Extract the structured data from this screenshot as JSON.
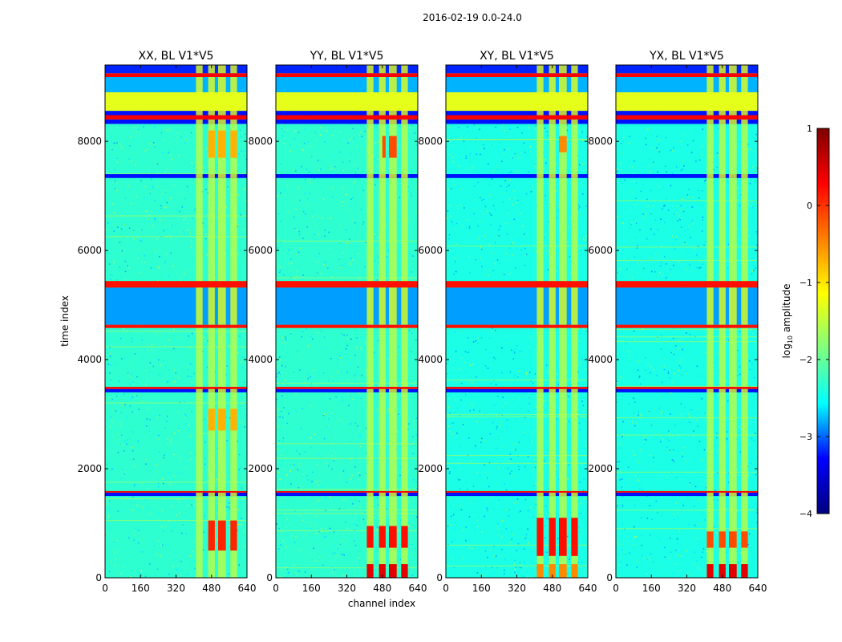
{
  "chart_data": {
    "type": "heatmap",
    "suptitle": "2016-02-19 0.0-24.0",
    "xlabel": "channel index",
    "ylabel": "time index",
    "xlim": [
      0,
      640
    ],
    "ylim": [
      0,
      9400
    ],
    "xticks": [
      "0",
      "160",
      "320",
      "480",
      "640"
    ],
    "yticks": [
      "0",
      "2000",
      "4000",
      "6000",
      "8000"
    ],
    "colorbar": {
      "label_prefix": "log",
      "label_sub": "10",
      "label_suffix": " amplitude",
      "ticks": [
        "1",
        "0",
        "−1",
        "−2",
        "−3",
        "−4"
      ],
      "vmin": -4,
      "vmax": 1,
      "colormap": "jet",
      "stops": [
        "#00007f",
        "#0000ff",
        "#00ffff",
        "#7fff7f",
        "#ffff00",
        "#ff7f00",
        "#ff0000",
        "#7f0000"
      ]
    },
    "panels": [
      {
        "title": "XX, BL V1*V5",
        "background_log_amp": -1.9,
        "active_channels": [
          [
            410,
            440
          ],
          [
            465,
            495
          ],
          [
            510,
            545
          ],
          [
            565,
            595
          ]
        ],
        "hot_zones": [
          [
            440,
            600,
            500,
            1050,
            0.2
          ],
          [
            440,
            600,
            2700,
            3100,
            -0.5
          ],
          [
            440,
            600,
            7700,
            8200,
            -0.5
          ]
        ]
      },
      {
        "title": "YY, BL V1*V5",
        "background_log_amp": -1.9,
        "active_channels": [
          [
            410,
            440
          ],
          [
            465,
            495
          ],
          [
            510,
            545
          ],
          [
            565,
            595
          ]
        ],
        "hot_zones": [
          [
            410,
            600,
            0,
            250,
            0.5
          ],
          [
            410,
            600,
            550,
            950,
            0.3
          ],
          [
            480,
            560,
            7700,
            8100,
            0.0
          ]
        ]
      },
      {
        "title": "XY, BL V1*V5",
        "background_log_amp": -2.0,
        "active_channels": [
          [
            410,
            440
          ],
          [
            465,
            495
          ],
          [
            510,
            545
          ],
          [
            565,
            595
          ]
        ],
        "hot_zones": [
          [
            410,
            600,
            0,
            250,
            -0.3
          ],
          [
            410,
            600,
            400,
            1100,
            0.3
          ],
          [
            500,
            560,
            7800,
            8100,
            -0.3
          ]
        ]
      },
      {
        "title": "YX, BL V1*V5",
        "background_log_amp": -2.0,
        "active_channels": [
          [
            410,
            440
          ],
          [
            465,
            495
          ],
          [
            510,
            545
          ],
          [
            565,
            595
          ]
        ],
        "hot_zones": [
          [
            410,
            600,
            0,
            250,
            0.5
          ],
          [
            410,
            600,
            550,
            850,
            0.0
          ]
        ]
      }
    ],
    "horizontal_bands": [
      {
        "t0": 1500,
        "t1": 1560,
        "log_amp": -3.3
      },
      {
        "t0": 1560,
        "t1": 1590,
        "log_amp": 0.4
      },
      {
        "t0": 3400,
        "t1": 3460,
        "log_amp": -3.3
      },
      {
        "t0": 3460,
        "t1": 3500,
        "log_amp": 0.4
      },
      {
        "t0": 4580,
        "t1": 4640,
        "log_amp": 0.3
      },
      {
        "t0": 4640,
        "t1": 5320,
        "log_amp": -2.6
      },
      {
        "t0": 5320,
        "t1": 5440,
        "log_amp": 0.3
      },
      {
        "t0": 7330,
        "t1": 7400,
        "log_amp": -3.3
      },
      {
        "t0": 8320,
        "t1": 8400,
        "log_amp": -3.3
      },
      {
        "t0": 8400,
        "t1": 8480,
        "log_amp": 0.4
      },
      {
        "t0": 8480,
        "t1": 8560,
        "log_amp": -3.3
      },
      {
        "t0": 8560,
        "t1": 8900,
        "log_amp": -1.0
      },
      {
        "t0": 8900,
        "t1": 9180,
        "log_amp": -2.5
      },
      {
        "t0": 9180,
        "t1": 9250,
        "log_amp": 0.4
      },
      {
        "t0": 9250,
        "t1": 9400,
        "log_amp": -3.2
      }
    ]
  }
}
